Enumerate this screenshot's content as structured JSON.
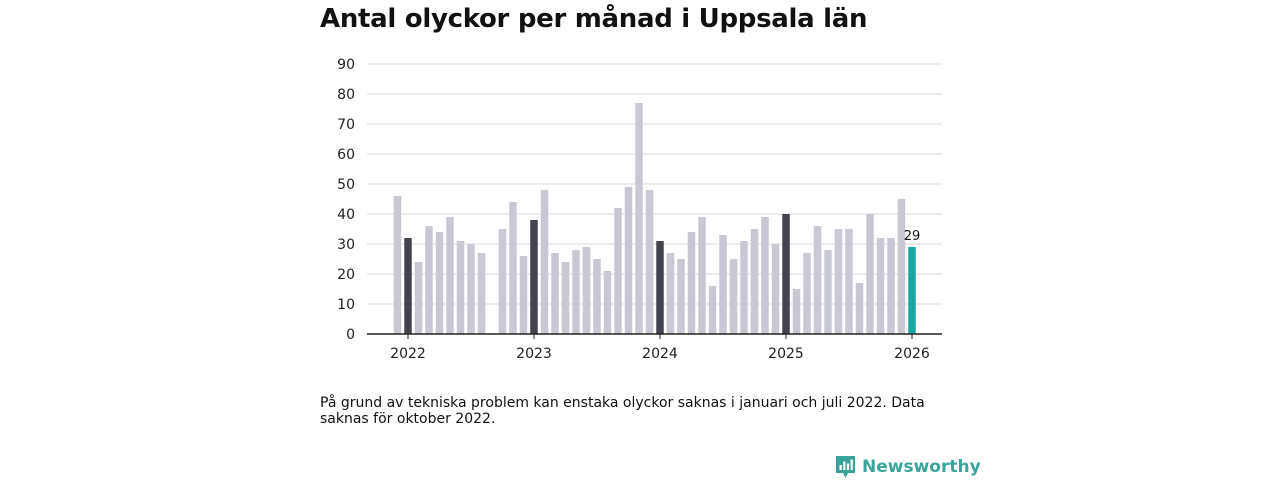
{
  "colors": {
    "bar": "#c8c8d4",
    "january_bar": "#43434f",
    "latest_bar": "#1aa6a0",
    "grid": "#d9d9d9",
    "axis": "#222222",
    "brand": "#3aa39b"
  },
  "chart_data": {
    "type": "bar",
    "title": "Antal olyckor per månad i Uppsala län",
    "xlabel": "",
    "ylabel": "",
    "ylim": [
      0,
      90
    ],
    "yticks": [
      0,
      10,
      20,
      30,
      40,
      50,
      60,
      70,
      80,
      90
    ],
    "xtick_labels": [
      "2022",
      "2023",
      "2024",
      "2025",
      "2026"
    ],
    "grid": true,
    "series": [
      {
        "name": "Antal olyckor",
        "values": [
          46,
          32,
          24,
          36,
          34,
          39,
          31,
          30,
          27,
          null,
          35,
          44,
          26,
          38,
          48,
          27,
          24,
          28,
          29,
          25,
          21,
          42,
          49,
          77,
          48,
          31,
          27,
          25,
          34,
          39,
          16,
          33,
          25,
          31,
          35,
          39,
          30,
          40,
          15,
          27,
          36,
          28,
          35,
          35,
          17,
          40,
          32,
          32,
          45,
          29
        ]
      }
    ],
    "highlight_label": "29"
  },
  "footnote": "På grund av tekniska problem kan enstaka olyckor saknas i januari och juli 2022. Data saknas för oktober 2022.",
  "brand": {
    "name": "Newsworthy",
    "logo_icon": "newsworthy-logo-icon"
  }
}
